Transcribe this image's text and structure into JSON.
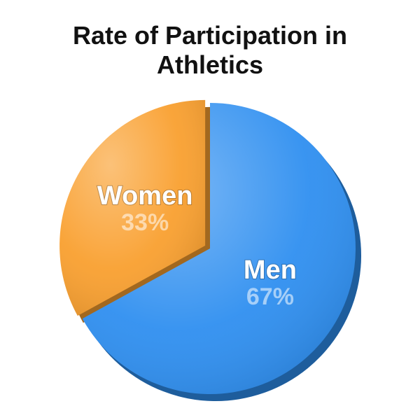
{
  "chart_data": {
    "type": "pie",
    "title": "Rate of Participation in Athletics",
    "categories": [
      "Men",
      "Women"
    ],
    "values": [
      67,
      33
    ],
    "value_labels": [
      "67%",
      "33%"
    ],
    "colors": [
      "#2f8ff0",
      "#f9a030"
    ]
  }
}
